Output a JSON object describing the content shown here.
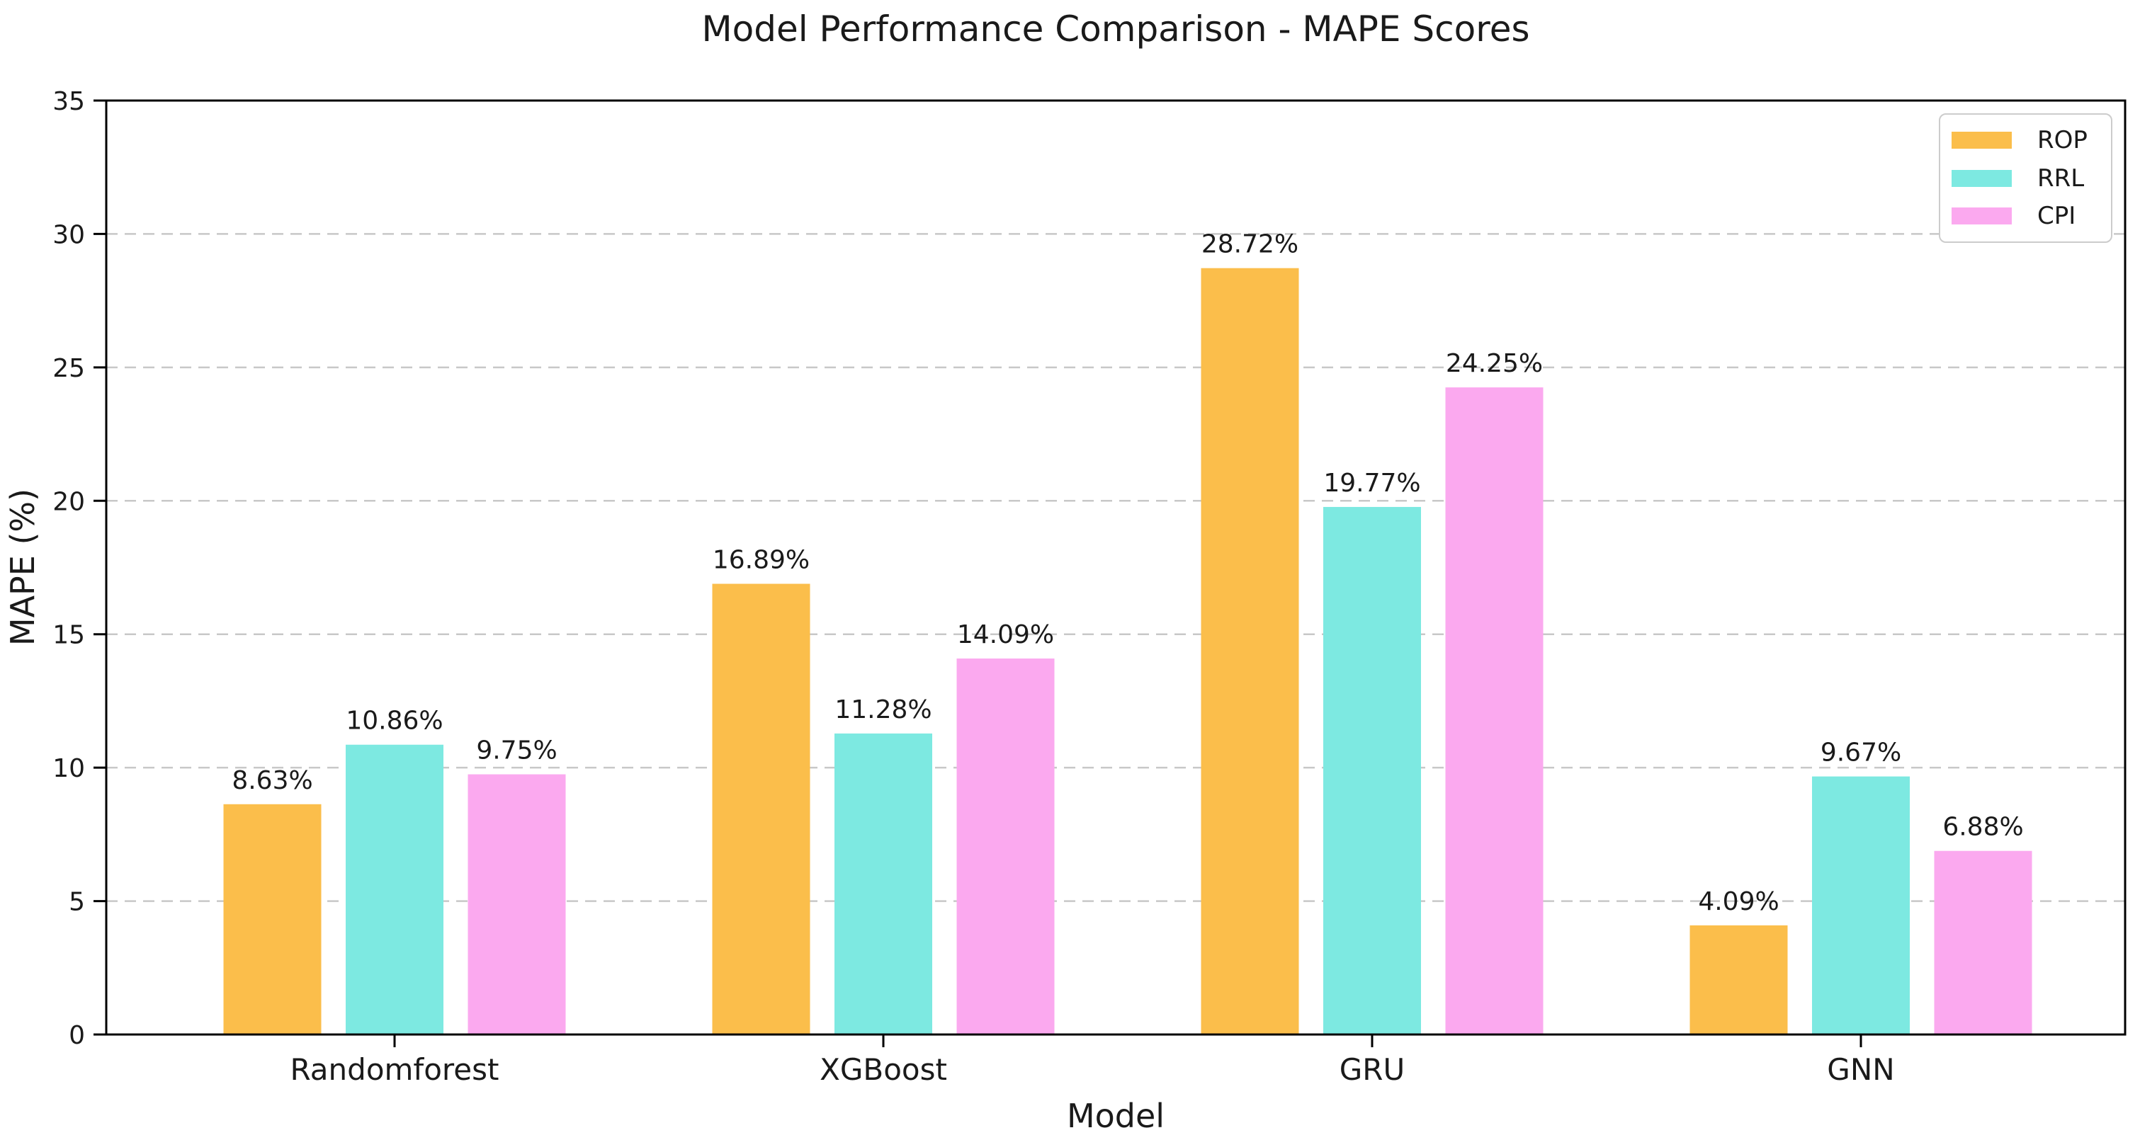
{
  "chart_data": {
    "type": "bar",
    "title": "Model Performance Comparison - MAPE Scores",
    "xlabel": "Model",
    "ylabel": "MAPE (%)",
    "categories": [
      "Randomforest",
      "XGBoost",
      "GRU",
      "GNN"
    ],
    "series": [
      {
        "name": "ROP",
        "color": "#FBBE4B",
        "values": [
          8.63,
          16.89,
          28.72,
          4.09
        ]
      },
      {
        "name": "RRL",
        "color": "#7DE9E1",
        "values": [
          10.86,
          11.28,
          19.77,
          9.67
        ]
      },
      {
        "name": "CPI",
        "color": "#FBA9EF",
        "values": [
          9.75,
          14.09,
          24.25,
          6.88
        ]
      }
    ],
    "bar_labels": [
      [
        "8.63%",
        "16.89%",
        "28.72%",
        "4.09%"
      ],
      [
        "10.86%",
        "11.28%",
        "19.77%",
        "9.67%"
      ],
      [
        "9.75%",
        "14.09%",
        "24.25%",
        "6.88%"
      ]
    ],
    "ylim": [
      0,
      35
    ],
    "yticks": [
      0,
      5,
      10,
      15,
      20,
      25,
      30,
      35
    ],
    "grid": "horizontal-dashed",
    "grid_color": "#c8c8c8",
    "spine_color": "#000000",
    "legend_position": "upper-right"
  }
}
